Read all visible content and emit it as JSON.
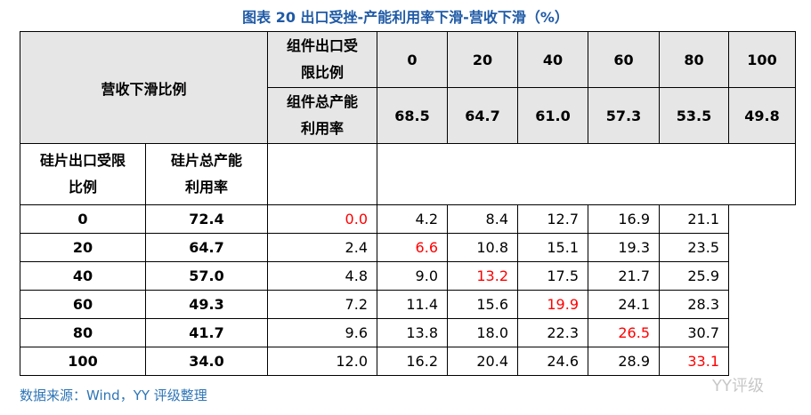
{
  "title": "图表 20 出口受挫-产能利用率下滑-营收下滑（%）",
  "table": {
    "corner_label": "营收下滑比例",
    "module_limit_label": "组件出口受限比例",
    "module_util_label": "组件总产能利用率",
    "wafer_limit_label": "硅片出口受限比例",
    "wafer_util_label": "硅片总产能利用率",
    "module_limits": [
      "0",
      "20",
      "40",
      "60",
      "80",
      "100"
    ],
    "module_utils": [
      "68.5",
      "64.7",
      "61.0",
      "57.3",
      "53.5",
      "49.8"
    ],
    "rows": [
      {
        "limit": "0",
        "util": "72.4",
        "values": [
          "0.0",
          "4.2",
          "8.4",
          "12.7",
          "16.9",
          "21.1"
        ]
      },
      {
        "limit": "20",
        "util": "64.7",
        "values": [
          "2.4",
          "6.6",
          "10.8",
          "15.1",
          "19.3",
          "23.5"
        ]
      },
      {
        "limit": "40",
        "util": "57.0",
        "values": [
          "4.8",
          "9.0",
          "13.2",
          "17.5",
          "21.7",
          "25.9"
        ]
      },
      {
        "limit": "60",
        "util": "49.3",
        "values": [
          "7.2",
          "11.4",
          "15.6",
          "19.9",
          "24.1",
          "28.3"
        ]
      },
      {
        "limit": "80",
        "util": "41.7",
        "values": [
          "9.6",
          "13.8",
          "18.0",
          "22.3",
          "26.5",
          "30.7"
        ]
      },
      {
        "limit": "100",
        "util": "34.0",
        "values": [
          "12.0",
          "16.2",
          "20.4",
          "24.6",
          "28.9",
          "33.1"
        ]
      }
    ]
  },
  "source": "数据来源：Wind，YY 评级整理",
  "watermark": "YY评级"
}
